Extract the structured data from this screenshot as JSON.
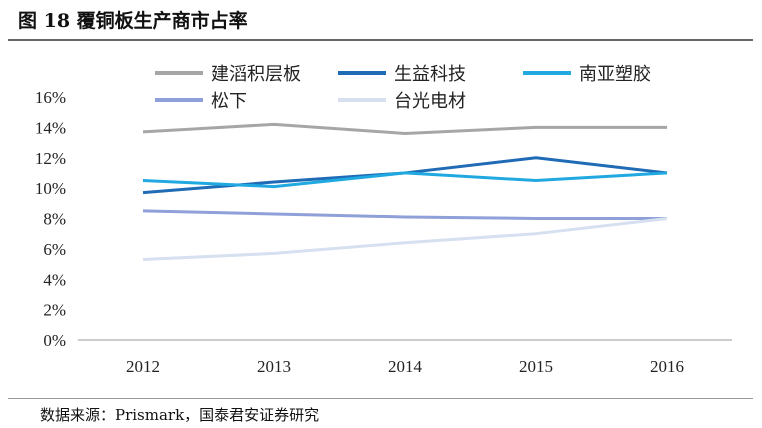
{
  "title": "图 18 覆铜板生产商市占率",
  "source": "数据来源：Prismark，国泰君安证券研究",
  "chart_data": {
    "type": "line",
    "x": [
      "2012",
      "2013",
      "2014",
      "2015",
      "2016"
    ],
    "yticks": [
      "0%",
      "2%",
      "4%",
      "6%",
      "8%",
      "10%",
      "12%",
      "14%",
      "16%"
    ],
    "ylim": [
      0,
      16
    ],
    "grid": false,
    "legend": "top",
    "series": [
      {
        "name": "建滔积层板",
        "color": "#a6a6a6",
        "values": [
          13.7,
          14.2,
          13.6,
          14.0,
          14.0
        ]
      },
      {
        "name": "生益科技",
        "color": "#1f6bb5",
        "values": [
          9.7,
          10.4,
          11.0,
          12.0,
          11.0
        ]
      },
      {
        "name": "南亚塑胶",
        "color": "#20a9e1",
        "values": [
          10.5,
          10.1,
          11.0,
          10.5,
          11.0
        ]
      },
      {
        "name": "松下",
        "color": "#8f9fd8",
        "values": [
          8.5,
          8.3,
          8.1,
          8.0,
          8.0
        ]
      },
      {
        "name": "台光电材",
        "color": "#d6e0f0",
        "values": [
          5.3,
          5.7,
          6.4,
          7.0,
          8.0
        ]
      }
    ]
  }
}
